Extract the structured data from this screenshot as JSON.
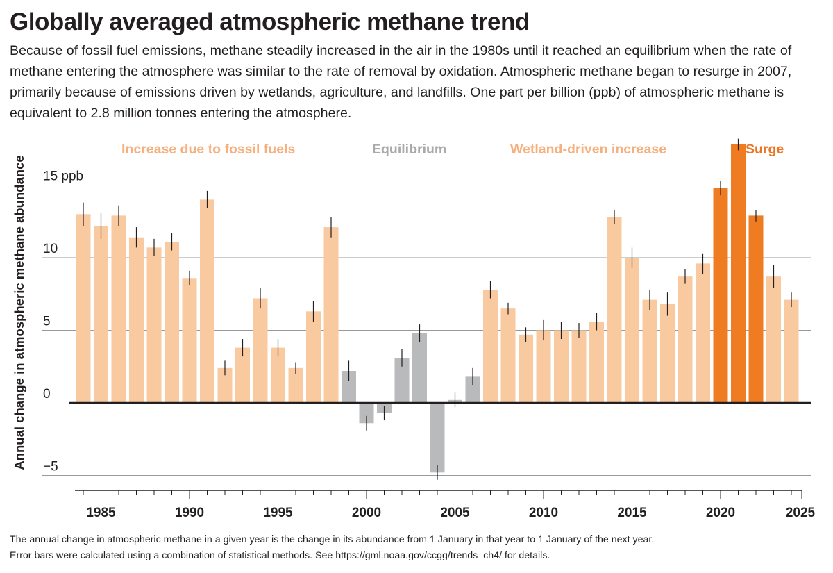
{
  "chart_data": {
    "type": "bar",
    "title": "Globally averaged atmospheric methane trend",
    "subtitle": "Because of fossil fuel emissions, methane steadily increased in the air in the 1980s until it reached an equilibrium when the rate of methane entering the atmosphere was similar to the rate of removal by oxidation. Atmospheric methane began to resurge in 2007, primarily because of emissions driven by wetlands, agriculture, and landfills. One part per billion (ppb) of atmospheric methane is equivalent to 2.8 million tonnes entering the atmosphere.",
    "ylabel": "Annual change in atmospheric methane abundance",
    "xlabel": "",
    "ylim": [
      -6,
      17
    ],
    "xlim": [
      1983.5,
      2025
    ],
    "y_ticks": [
      {
        "value": 15,
        "label": "15 ppb"
      },
      {
        "value": 10,
        "label": "10"
      },
      {
        "value": 5,
        "label": "5"
      },
      {
        "value": 0,
        "label": "0"
      },
      {
        "value": -5,
        "label": "−5"
      }
    ],
    "x_ticks": [
      1985,
      1990,
      1995,
      2000,
      2005,
      2010,
      2015,
      2020,
      2025
    ],
    "phases": [
      {
        "label": "Increase due to fossil fuels",
        "color": "#f9c9a0"
      },
      {
        "label": "Equilibrium",
        "color": "#b9babc"
      },
      {
        "label": "Wetland-driven increase",
        "color": "#f9c9a0"
      },
      {
        "label": "Surge",
        "color": "#f07c22"
      }
    ],
    "phase_label_colors": [
      "#f6b07e",
      "#a9aaac",
      "#f6b07e",
      "#eb7522"
    ],
    "years": [
      1984,
      1985,
      1986,
      1987,
      1988,
      1989,
      1990,
      1991,
      1992,
      1993,
      1994,
      1995,
      1996,
      1997,
      1998,
      1999,
      2000,
      2001,
      2002,
      2003,
      2004,
      2005,
      2006,
      2007,
      2008,
      2009,
      2010,
      2011,
      2012,
      2013,
      2014,
      2015,
      2016,
      2017,
      2018,
      2019,
      2020,
      2021,
      2022,
      2023,
      2024
    ],
    "values": [
      13.0,
      12.2,
      12.9,
      11.4,
      10.7,
      11.1,
      8.6,
      14.0,
      2.4,
      3.8,
      7.2,
      3.8,
      2.4,
      6.3,
      12.1,
      2.2,
      -1.4,
      -0.7,
      3.1,
      4.8,
      -4.8,
      0.2,
      1.8,
      7.8,
      6.5,
      4.7,
      5.0,
      5.0,
      5.0,
      5.6,
      12.8,
      10.0,
      7.1,
      6.8,
      8.7,
      9.6,
      14.8,
      17.8,
      12.9,
      8.7,
      7.1
    ],
    "errors": [
      0.8,
      0.9,
      0.7,
      0.7,
      0.6,
      0.6,
      0.5,
      0.6,
      0.5,
      0.6,
      0.7,
      0.6,
      0.4,
      0.7,
      0.7,
      0.7,
      0.5,
      0.5,
      0.6,
      0.6,
      0.5,
      0.5,
      0.6,
      0.6,
      0.4,
      0.5,
      0.7,
      0.6,
      0.5,
      0.6,
      0.5,
      0.7,
      0.7,
      0.8,
      0.5,
      0.7,
      0.5,
      0.4,
      0.4,
      0.8,
      0.5
    ],
    "phase_index": [
      0,
      0,
      0,
      0,
      0,
      0,
      0,
      0,
      0,
      0,
      0,
      0,
      0,
      0,
      0,
      1,
      1,
      1,
      1,
      1,
      1,
      1,
      1,
      2,
      2,
      2,
      2,
      2,
      2,
      2,
      2,
      2,
      2,
      2,
      2,
      2,
      3,
      3,
      3,
      2,
      2
    ],
    "colors": {
      "zero_line": "#231f20",
      "grid": "#9a9a9a",
      "error_bar": "#231f20"
    }
  },
  "footnote": {
    "line1": "The annual change in atmospheric methane in a given year is the change in its abundance from 1 January in that year to 1 January of the next year.",
    "line2": "Error bars were calculated using a combination of statistical methods. See https://gml.noaa.gov/ccgg/trends_ch4/ for details."
  }
}
